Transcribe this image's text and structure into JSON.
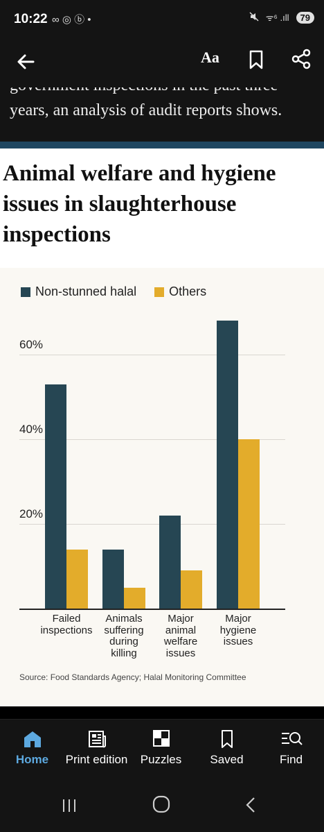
{
  "status_bar": {
    "time": "10:22",
    "left_icons": "∞ ◎ ⓑ •",
    "signal": "ᯤ⁶ .ıll",
    "battery": "79"
  },
  "app_bar": {
    "text_size_label": "Aa"
  },
  "article": {
    "cut_line": "government inspections in the past three",
    "visible_line": "years, an analysis of audit reports shows."
  },
  "chart_data": {
    "type": "bar",
    "title": "Animal welfare and hygiene issues in slaughterhouse inspections",
    "categories": [
      [
        "Failed",
        "inspections"
      ],
      [
        "Animals",
        "suffering",
        "during",
        "killing"
      ],
      [
        "Major",
        "animal",
        "welfare",
        "issues"
      ],
      [
        "Major",
        "hygiene",
        "issues"
      ]
    ],
    "series": [
      {
        "name": "Non-stunned halal",
        "color": "#264653",
        "values": [
          53,
          14,
          22,
          68
        ]
      },
      {
        "name": "Others",
        "color": "#e3ac2b",
        "values": [
          14,
          5,
          9,
          40
        ]
      }
    ],
    "yticks": [
      "60%",
      "40%",
      "20%"
    ],
    "ytick_values": [
      60,
      40,
      20
    ],
    "ylim": [
      0,
      70
    ],
    "legend_position": "top-left",
    "grid": true,
    "source": "Source: Food Standards Agency; Halal Monitoring Committee"
  },
  "bottom_nav": {
    "items": [
      {
        "label": "Home",
        "icon": "home-icon",
        "active": true
      },
      {
        "label": "Print edition",
        "icon": "newspaper-icon",
        "active": false
      },
      {
        "label": "Puzzles",
        "icon": "puzzle-icon",
        "active": false
      },
      {
        "label": "Saved",
        "icon": "bookmark-icon",
        "active": false
      },
      {
        "label": "Find",
        "icon": "search-list-icon",
        "active": false
      }
    ]
  }
}
